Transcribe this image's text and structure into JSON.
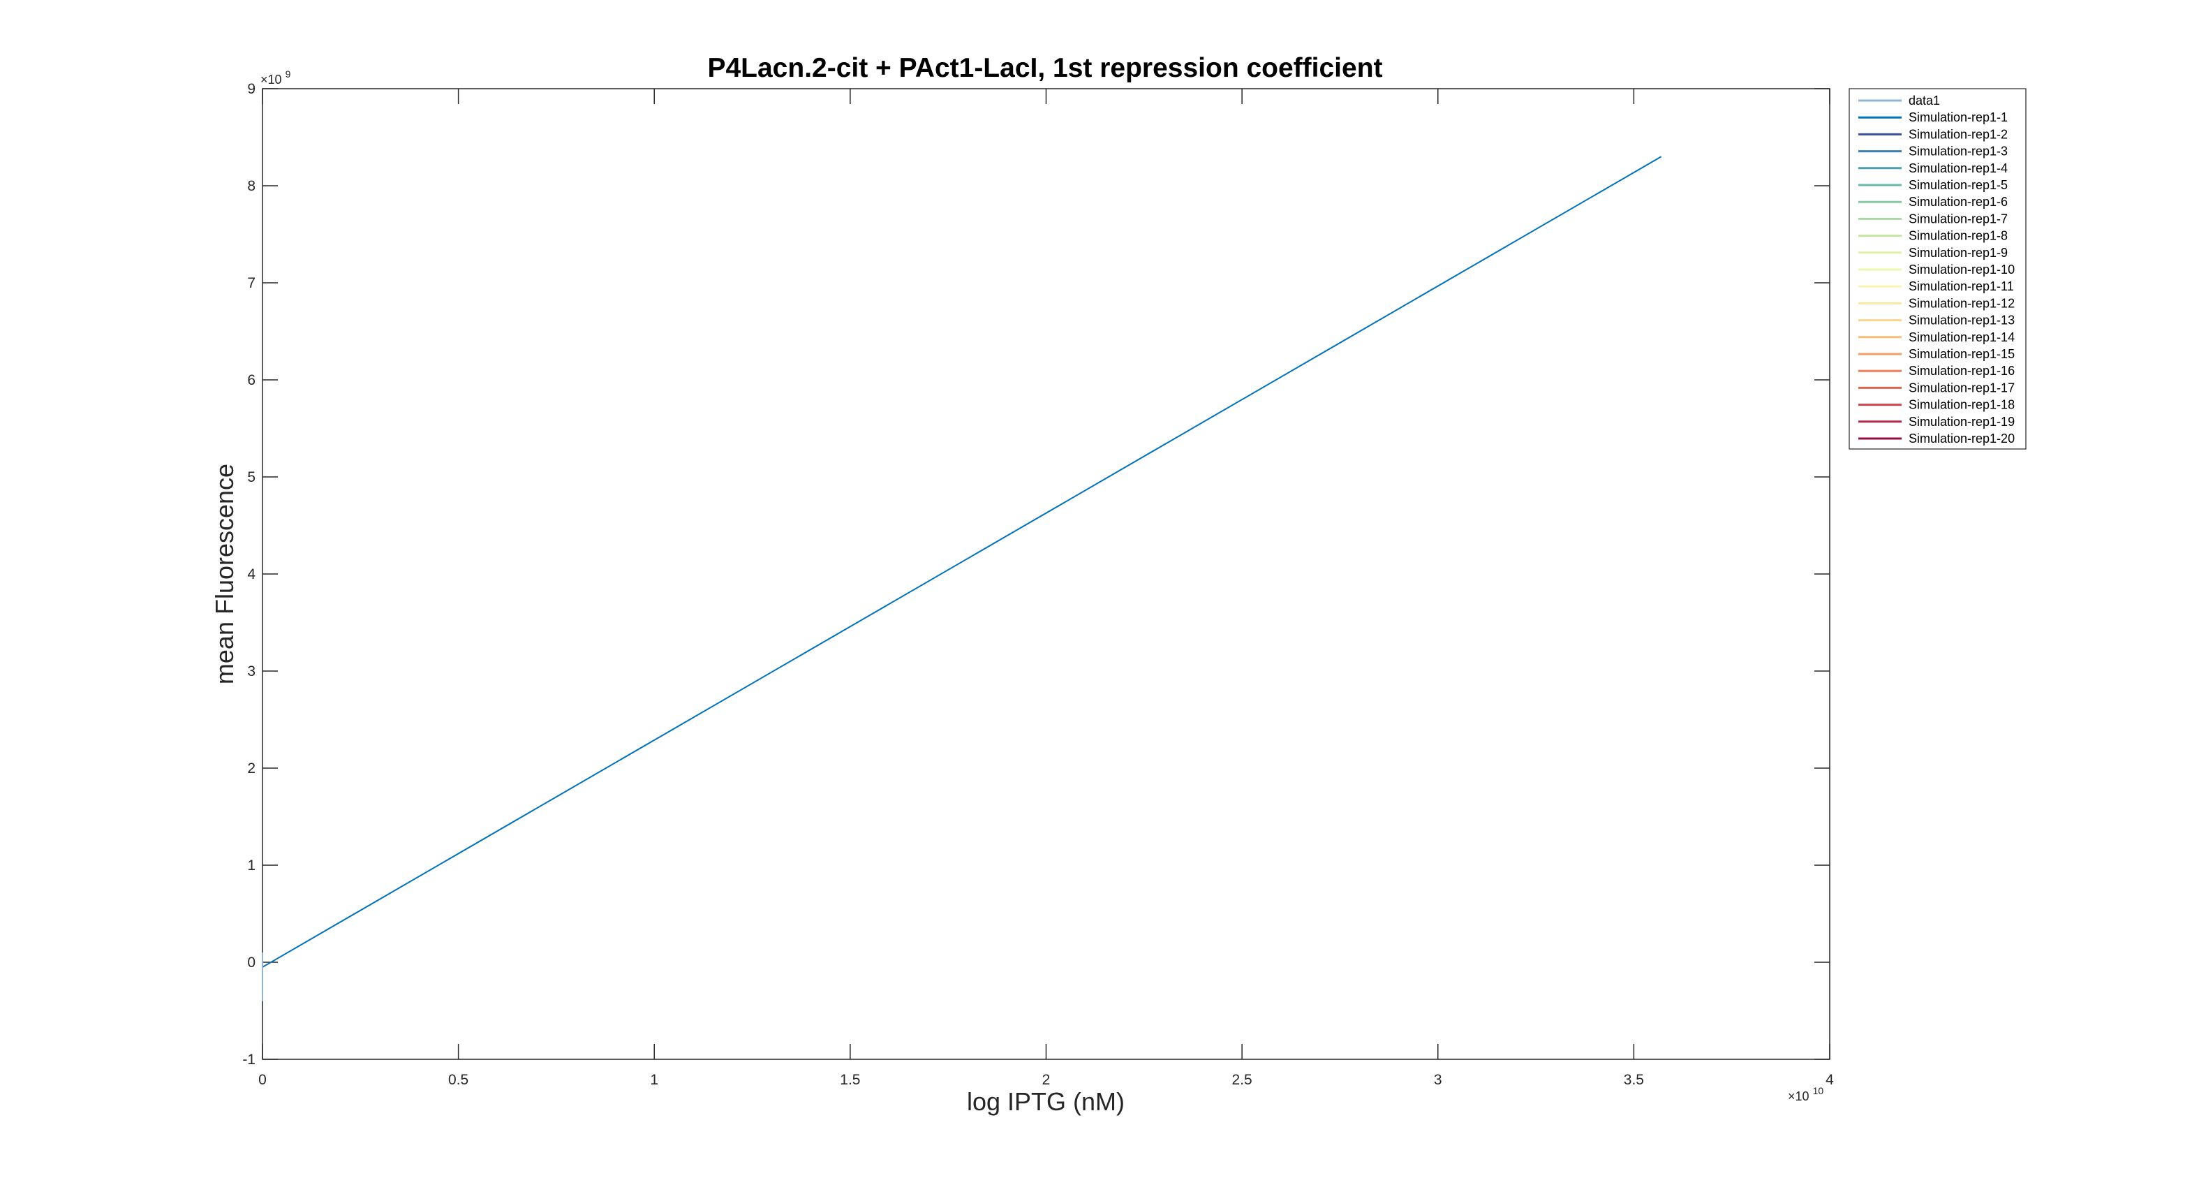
{
  "chart_data": {
    "type": "line",
    "title": "P4Lacn.2-cit + PAct1-LacI, 1st repression coefficient",
    "xlabel": "log IPTG (nM)",
    "ylabel": "mean Fluorescence",
    "x_exponent_label": "×10",
    "x_exponent_power": "10",
    "y_exponent_label": "×10",
    "y_exponent_power": "9",
    "xlim": [
      0,
      4
    ],
    "ylim": [
      -1,
      9
    ],
    "x_ticks": [
      0,
      0.5,
      1,
      1.5,
      2,
      2.5,
      3,
      3.5,
      4
    ],
    "x_tick_labels": [
      "0",
      "0.5",
      "1",
      "1.5",
      "2",
      "2.5",
      "3",
      "3.5",
      "4"
    ],
    "y_ticks": [
      -1,
      0,
      1,
      2,
      3,
      4,
      5,
      6,
      7,
      8,
      9
    ],
    "y_tick_labels": [
      "-1",
      "0",
      "1",
      "2",
      "3",
      "4",
      "5",
      "6",
      "7",
      "8",
      "9"
    ],
    "grid": false,
    "legend_position": "outside-top-right",
    "series": [
      {
        "name": "data1",
        "color": "#8fb4d9",
        "x": [
          0,
          0
        ],
        "y": [
          0,
          0
        ]
      },
      {
        "name": "Simulation-rep1-1",
        "color": "#0072bd",
        "x": [
          0,
          3.57
        ],
        "y": [
          -0.05,
          8.3
        ]
      },
      {
        "name": "Simulation-rep1-2",
        "color": "#3b4f9a",
        "x": [
          0,
          0
        ],
        "y": [
          0,
          0
        ]
      },
      {
        "name": "Simulation-rep1-3",
        "color": "#3b7fb6",
        "x": [
          0,
          0
        ],
        "y": [
          0,
          0
        ]
      },
      {
        "name": "Simulation-rep1-4",
        "color": "#4c9fae",
        "x": [
          0,
          0
        ],
        "y": [
          0,
          0
        ]
      },
      {
        "name": "Simulation-rep1-5",
        "color": "#67b9a9",
        "x": [
          0,
          0
        ],
        "y": [
          0,
          0
        ]
      },
      {
        "name": "Simulation-rep1-6",
        "color": "#88c9a4",
        "x": [
          0,
          0
        ],
        "y": [
          0,
          0
        ]
      },
      {
        "name": "Simulation-rep1-7",
        "color": "#a8d8a2",
        "x": [
          0,
          0
        ],
        "y": [
          0,
          0
        ]
      },
      {
        "name": "Simulation-rep1-8",
        "color": "#c5e5a0",
        "x": [
          0,
          0
        ],
        "y": [
          0,
          0
        ]
      },
      {
        "name": "Simulation-rep1-9",
        "color": "#dff0a7",
        "x": [
          0,
          0
        ],
        "y": [
          0,
          0
        ]
      },
      {
        "name": "Simulation-rep1-10",
        "color": "#eef6b4",
        "x": [
          0,
          0
        ],
        "y": [
          0,
          0
        ]
      },
      {
        "name": "Simulation-rep1-11",
        "color": "#f8f4b6",
        "x": [
          0,
          0
        ],
        "y": [
          0,
          0
        ]
      },
      {
        "name": "Simulation-rep1-12",
        "color": "#fbe7a0",
        "x": [
          0,
          0
        ],
        "y": [
          0,
          0
        ]
      },
      {
        "name": "Simulation-rep1-13",
        "color": "#fbd48a",
        "x": [
          0,
          0
        ],
        "y": [
          0,
          0
        ]
      },
      {
        "name": "Simulation-rep1-14",
        "color": "#f9bb76",
        "x": [
          0,
          0
        ],
        "y": [
          0,
          0
        ]
      },
      {
        "name": "Simulation-rep1-15",
        "color": "#f49e65",
        "x": [
          0,
          0
        ],
        "y": [
          0,
          0
        ]
      },
      {
        "name": "Simulation-rep1-16",
        "color": "#ec7f57",
        "x": [
          0,
          0
        ],
        "y": [
          0,
          0
        ]
      },
      {
        "name": "Simulation-rep1-17",
        "color": "#df6250",
        "x": [
          0,
          0
        ],
        "y": [
          0,
          0
        ]
      },
      {
        "name": "Simulation-rep1-18",
        "color": "#cd464c",
        "x": [
          0,
          0
        ],
        "y": [
          0,
          0
        ]
      },
      {
        "name": "Simulation-rep1-19",
        "color": "#b42a4a",
        "x": [
          0,
          0
        ],
        "y": [
          0,
          0
        ]
      },
      {
        "name": "Simulation-rep1-20",
        "color": "#8e0e44",
        "x": [
          0,
          0
        ],
        "y": [
          0,
          0
        ]
      }
    ]
  }
}
